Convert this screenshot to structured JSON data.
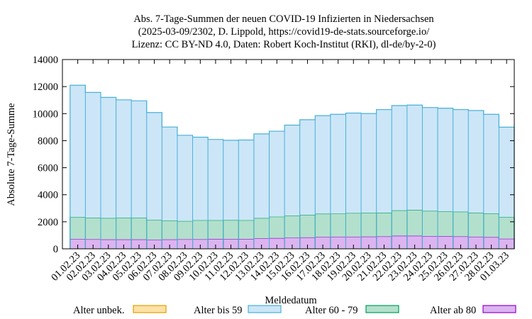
{
  "chart_data": {
    "type": "bar",
    "stacked": true,
    "title_lines": [
      "Abs. 7-Tage-Summen der neuen COVID-19 Infizierten in Niedersachsen",
      "(2025-03-09/2302, D. Lippold, https://covid19-de-stats.sourceforge.io/",
      "Lizenz: CC BY-ND 4.0, Daten: Robert Koch-Institut (RKI), dl-de/by-2-0)"
    ],
    "xlabel": "Meldedatum",
    "ylabel": "Absolute 7-Tage-Summe",
    "ylim": [
      0,
      14000
    ],
    "yticks": [
      0,
      2000,
      4000,
      6000,
      8000,
      10000,
      12000,
      14000
    ],
    "grid": false,
    "legend_position": "bottom",
    "categories": [
      "01.02.23",
      "02.02.23",
      "03.02.23",
      "04.02.23",
      "05.02.23",
      "06.02.23",
      "07.02.23",
      "08.02.23",
      "09.02.23",
      "10.02.23",
      "11.02.23",
      "12.02.23",
      "13.02.23",
      "14.02.23",
      "15.02.23",
      "16.02.23",
      "17.02.23",
      "18.02.23",
      "19.02.23",
      "20.02.23",
      "21.02.23",
      "22.02.23",
      "23.02.23",
      "24.02.23",
      "25.02.23",
      "26.02.23",
      "27.02.23",
      "28.02.23",
      "01.03.23"
    ],
    "series": [
      {
        "name": "Alter unbek.",
        "color": "#fde2a6",
        "stroke": "#e0a000",
        "values": [
          5,
          5,
          5,
          5,
          5,
          5,
          5,
          5,
          5,
          5,
          5,
          5,
          5,
          5,
          5,
          5,
          5,
          5,
          5,
          5,
          5,
          5,
          5,
          5,
          5,
          5,
          5,
          5,
          5
        ]
      },
      {
        "name": "Alter ab 80",
        "color": "#dcb4f0",
        "stroke": "#9400d3",
        "values": [
          720,
          700,
          690,
          690,
          690,
          660,
          690,
          700,
          700,
          730,
          720,
          710,
          760,
          790,
          810,
          840,
          870,
          890,
          890,
          900,
          910,
          960,
          960,
          930,
          920,
          910,
          890,
          860,
          740
        ]
      },
      {
        "name": "Alter 60 - 79",
        "color": "#b3e0cc",
        "stroke": "#009e60",
        "values": [
          1620,
          1600,
          1580,
          1610,
          1610,
          1470,
          1400,
          1350,
          1410,
          1380,
          1400,
          1400,
          1510,
          1580,
          1630,
          1660,
          1720,
          1710,
          1750,
          1750,
          1760,
          1880,
          1920,
          1870,
          1840,
          1830,
          1780,
          1750,
          1600
        ]
      },
      {
        "name": "Alter bis 59",
        "color": "#cce6f8",
        "stroke": "#4ab0d8",
        "values": [
          9755,
          9265,
          8925,
          8715,
          8645,
          7945,
          6915,
          6345,
          6145,
          5975,
          5905,
          5935,
          6225,
          6325,
          6705,
          7045,
          7255,
          7345,
          7395,
          7355,
          7625,
          7755,
          7745,
          7645,
          7635,
          7555,
          7555,
          7335,
          6655
        ]
      }
    ],
    "totals": [
      12100,
      11570,
      11200,
      11020,
      10950,
      10080,
      9010,
      8400,
      8250,
      8090,
      8030,
      8050,
      8500,
      8700,
      9150,
      9550,
      9850,
      9950,
      10040,
      10010,
      10300,
      10600,
      10630,
      10450,
      10400,
      10300,
      10240,
      9950,
      9000
    ]
  },
  "legend": {
    "items": [
      {
        "key": "unbek",
        "label": "Alter unbek.",
        "color": "#fde2a6",
        "stroke": "#e0a000"
      },
      {
        "key": "bis59",
        "label": "Alter bis 59",
        "color": "#cce6f8",
        "stroke": "#4ab0d8"
      },
      {
        "key": "60_79",
        "label": "Alter 60 - 79",
        "color": "#b3e0cc",
        "stroke": "#009e60"
      },
      {
        "key": "ab80",
        "label": "Alter ab 80",
        "color": "#dcb4f0",
        "stroke": "#9400d3"
      }
    ]
  }
}
